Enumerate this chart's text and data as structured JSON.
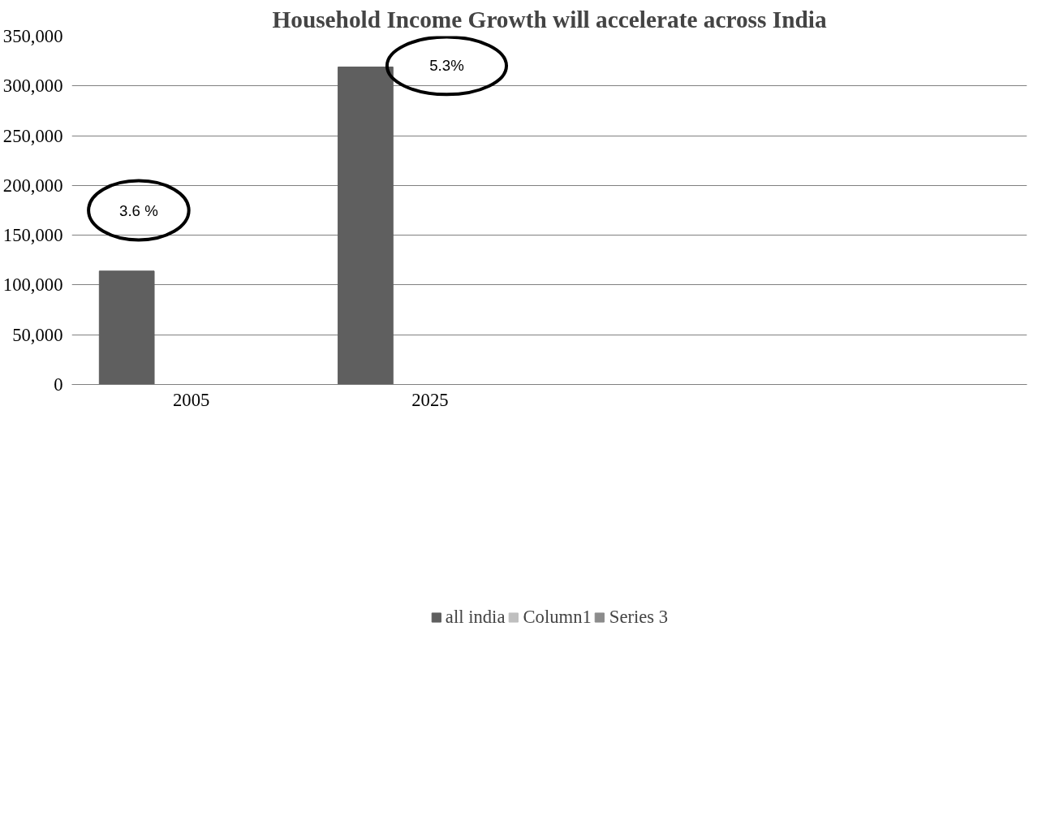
{
  "chart_data": {
    "type": "bar",
    "title": "Household Income Growth will accelerate across India",
    "categories": [
      "2005",
      "2025",
      null,
      null
    ],
    "series": [
      {
        "name": "all india",
        "color": "#5f5f5f",
        "values": [
          114000,
          319000,
          null,
          null
        ]
      },
      {
        "name": "Column1",
        "color": "#bfbfbf",
        "values": [
          null,
          null,
          null,
          null
        ]
      },
      {
        "name": "Series 3",
        "color": "#8c8c8c",
        "values": [
          null,
          null,
          null,
          null
        ]
      }
    ],
    "ylim": [
      0,
      350000
    ],
    "yticks": [
      {
        "value": 0,
        "label": "0"
      },
      {
        "value": 50000,
        "label": "50,000"
      },
      {
        "value": 100000,
        "label": "100,000"
      },
      {
        "value": 150000,
        "label": "150,000"
      },
      {
        "value": 200000,
        "label": "200,000"
      },
      {
        "value": 250000,
        "label": "250,000"
      },
      {
        "value": 300000,
        "label": "300,000"
      },
      {
        "value": 350000,
        "label": "350,000"
      }
    ],
    "grid": "y",
    "legend": "bottom",
    "annotations": [
      "3.6 %",
      "5.3%"
    ]
  }
}
